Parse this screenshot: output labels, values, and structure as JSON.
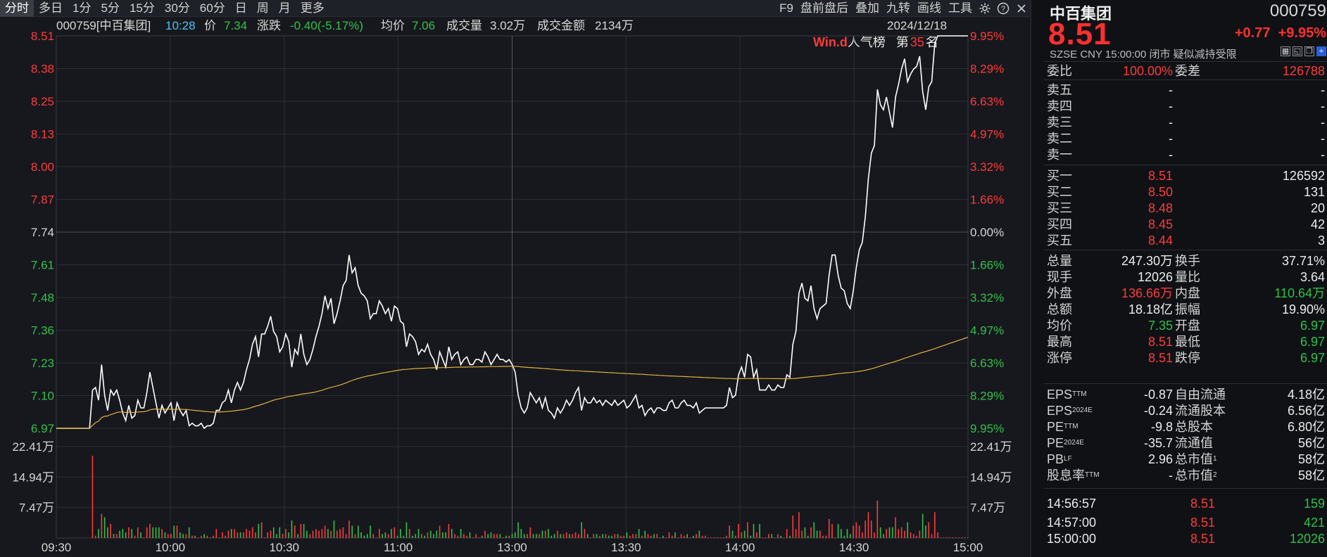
{
  "toolbar": {
    "periods": [
      "分时",
      "多日",
      "1分",
      "5分",
      "15分",
      "30分",
      "60分",
      "日",
      "周",
      "月",
      "更多"
    ],
    "active_period": "分时",
    "right_items": [
      "F9",
      "盘前盘后",
      "叠加",
      "九转",
      "画线",
      "工具"
    ]
  },
  "info_line": {
    "code_name": "000759[中百集团]",
    "time": "10:28",
    "price_label": "价",
    "price": "7.34",
    "change_label": "涨跌",
    "change": "-0.40(-5.17%)",
    "avg_label": "均价",
    "avg": "7.06",
    "vol_label": "成交量",
    "vol": "3.02万",
    "amount_label": "成交金额",
    "amount": "2134万",
    "date": "2024/12/18"
  },
  "popularity": {
    "brand": "Win.d",
    "label": "人气榜",
    "rank_prefix": "第",
    "rank": "35",
    "rank_suffix": "名"
  },
  "chart_data": {
    "type": "line",
    "prev_close": 7.74,
    "price_ticks": [
      "8.51",
      "8.38",
      "8.25",
      "8.13",
      "8.00",
      "7.87",
      "7.74",
      "7.61",
      "7.48",
      "7.36",
      "7.23",
      "7.10",
      "6.97"
    ],
    "pct_ticks": [
      "9.95%",
      "8.29%",
      "6.63%",
      "4.97%",
      "3.32%",
      "1.66%",
      "0.00%",
      "1.66%",
      "3.32%",
      "4.97%",
      "6.63%",
      "8.29%",
      "9.95%"
    ],
    "ylim": [
      6.97,
      8.51
    ],
    "vol_ticks": [
      "22.41万",
      "14.94万",
      "7.47万"
    ],
    "vol_max": 29880,
    "x_ticks": [
      "09:30",
      "10:00",
      "10:30",
      "11:00",
      "13:00",
      "13:30",
      "14:00",
      "14:30",
      "15:00"
    ],
    "series": [
      {
        "values": [
          6.97,
          6.97,
          6.97,
          6.97,
          6.97,
          6.97,
          6.97,
          6.97,
          6.97,
          6.97,
          6.97,
          6.97,
          7.12,
          7.13,
          7.08,
          7.22,
          7.1,
          7.04,
          7.12,
          7.1,
          7.12,
          7.08,
          7.03,
          7.0,
          7.06,
          7.01,
          7.02,
          7.08,
          7.05,
          7.05,
          7.11,
          7.19,
          7.13,
          7.07,
          7.01,
          7.06,
          7.03,
          7.05,
          7.07,
          7.0,
          7.07,
          7.04,
          7.02,
          7.04,
          6.98,
          6.99,
          6.98,
          6.98,
          6.99,
          6.97,
          6.98,
          6.98,
          6.99,
          7.04,
          7.04,
          7.07,
          7.08,
          7.12,
          7.07,
          7.12,
          7.15,
          7.12,
          7.15,
          7.2,
          7.24,
          7.3,
          7.33,
          7.25,
          7.34,
          7.34,
          7.37,
          7.41,
          7.35,
          7.33,
          7.27,
          7.29,
          7.34,
          7.31,
          7.21,
          7.28,
          7.26,
          7.34,
          7.26,
          7.22,
          7.24,
          7.28,
          7.33,
          7.37,
          7.42,
          7.49,
          7.44,
          7.48,
          7.38,
          7.42,
          7.47,
          7.53,
          7.55,
          7.65,
          7.58,
          7.6,
          7.53,
          7.5,
          7.49,
          7.47,
          7.4,
          7.42,
          7.42,
          7.47,
          7.45,
          7.42,
          7.44,
          7.39,
          7.45,
          7.44,
          7.39,
          7.38,
          7.29,
          7.34,
          7.33,
          7.31,
          7.26,
          7.28,
          7.27,
          7.3,
          7.26,
          7.24,
          7.2,
          7.27,
          7.24,
          7.21,
          7.29,
          7.24,
          7.26,
          7.27,
          7.22,
          7.24,
          7.25,
          7.22,
          7.22,
          7.24,
          7.24,
          7.23,
          7.27,
          7.25,
          7.22,
          7.24,
          7.26,
          7.24,
          7.24,
          7.23,
          7.24,
          7.22,
          7.19,
          7.1,
          7.05,
          7.03,
          7.05,
          7.11,
          7.09,
          7.07,
          7.09,
          7.05,
          7.09,
          7.04,
          7.03,
          7.01,
          7.05,
          7.03,
          7.05,
          7.08,
          7.06,
          7.08,
          7.11,
          7.13,
          7.04,
          7.09,
          7.07,
          7.07,
          7.09,
          7.07,
          7.08,
          7.06,
          7.08,
          7.07,
          7.06,
          7.08,
          7.06,
          7.07,
          7.08,
          7.05,
          7.06,
          7.08,
          7.1,
          7.05,
          7.06,
          7.02,
          7.04,
          7.05,
          7.03,
          7.05,
          7.05,
          7.04,
          7.04,
          7.07,
          7.08,
          7.05,
          7.05,
          7.07,
          7.08,
          7.06,
          7.06,
          7.05,
          7.07,
          7.03,
          7.04,
          7.05,
          7.05,
          7.05,
          7.05,
          7.05,
          7.05,
          7.05,
          7.06,
          7.13,
          7.09,
          7.1,
          7.18,
          7.21,
          7.17,
          7.26,
          7.25,
          7.17,
          7.2,
          7.12,
          7.12,
          7.12,
          7.14,
          7.12,
          7.12,
          7.14,
          7.13,
          7.13,
          7.18,
          7.17,
          7.3,
          7.35,
          7.5,
          7.54,
          7.48,
          7.47,
          7.53,
          7.44,
          7.4,
          7.44,
          7.45,
          7.46,
          7.57,
          7.65,
          7.65,
          7.57,
          7.52,
          7.51,
          7.46,
          7.44,
          7.51,
          7.6,
          7.67,
          7.7,
          7.8,
          7.95,
          8.05,
          8.08,
          8.3,
          8.24,
          8.22,
          8.27,
          8.21,
          8.15,
          8.27,
          8.32,
          8.38,
          8.42,
          8.33,
          8.36,
          8.38,
          8.39,
          8.43,
          8.29,
          8.22,
          8.31,
          8.33,
          8.48,
          8.51,
          8.51,
          8.51,
          8.51,
          8.51,
          8.51,
          8.51,
          8.51,
          8.51,
          8.51,
          8.51
        ]
      }
    ],
    "volume_note": "volume bars under price"
  },
  "quote": {
    "name": "中百集团",
    "code": "000759",
    "price": "8.51",
    "change": "+0.77",
    "change_pct": "+9.95%",
    "meta": "SZSE  CNY  15:00:00  闭市   疑似减持受限",
    "weibi_label": "委比",
    "weibi": "100.00%",
    "weicha_label": "委差",
    "weicha": "126788",
    "asks": [
      {
        "label": "卖五",
        "price": "-",
        "vol": "-"
      },
      {
        "label": "卖四",
        "price": "-",
        "vol": "-"
      },
      {
        "label": "卖三",
        "price": "-",
        "vol": "-"
      },
      {
        "label": "卖二",
        "price": "-",
        "vol": "-"
      },
      {
        "label": "卖一",
        "price": "-",
        "vol": "-"
      }
    ],
    "bids": [
      {
        "label": "买一",
        "price": "8.51",
        "vol": "126592"
      },
      {
        "label": "买二",
        "price": "8.50",
        "vol": "131"
      },
      {
        "label": "买三",
        "price": "8.48",
        "vol": "20"
      },
      {
        "label": "买四",
        "price": "8.45",
        "vol": "42"
      },
      {
        "label": "买五",
        "price": "8.44",
        "vol": "3"
      }
    ],
    "stats": [
      {
        "l1": "总量",
        "v1": "247.30万",
        "c1": "white",
        "l2": "换手",
        "v2": "37.71%",
        "c2": "white"
      },
      {
        "l1": "现手",
        "v1": "12026",
        "c1": "white",
        "l2": "量比",
        "v2": "3.64",
        "c2": "white"
      },
      {
        "l1": "外盘",
        "v1": "136.66万",
        "c1": "red",
        "l2": "内盘",
        "v2": "110.64万",
        "c2": "green"
      },
      {
        "l1": "总额",
        "v1": "18.18亿",
        "c1": "white",
        "l2": "振幅",
        "v2": "19.90%",
        "c2": "white"
      },
      {
        "l1": "均价",
        "v1": "7.35",
        "c1": "green",
        "l2": "开盘",
        "v2": "6.97",
        "c2": "green"
      },
      {
        "l1": "最高",
        "v1": "8.51",
        "c1": "red",
        "l2": "最低",
        "v2": "6.97",
        "c2": "green"
      },
      {
        "l1": "涨停",
        "v1": "8.51",
        "c1": "red",
        "l2": "跌停",
        "v2": "6.97",
        "c2": "green"
      }
    ],
    "fundamentals": [
      {
        "l1": "EPS",
        "s1": "TTM",
        "v1": "-0.87",
        "l2": "自由流通",
        "s2": "",
        "v2": "4.18亿"
      },
      {
        "l1": "EPS",
        "s1": "2024E",
        "v1": "-0.24",
        "l2": "流通股本",
        "s2": "",
        "v2": "6.56亿"
      },
      {
        "l1": "PE",
        "s1": "TTM",
        "v1": "-9.8",
        "l2": "总股本",
        "s2": "",
        "v2": "6.80亿"
      },
      {
        "l1": "PE",
        "s1": "2024E",
        "v1": "-35.7",
        "l2": "流通值",
        "s2": "",
        "v2": "56亿"
      },
      {
        "l1": "PB",
        "s1": "LF",
        "v1": "2.96",
        "l2": "总市值",
        "s2": "1",
        "v2": "58亿"
      },
      {
        "l1": "股息率",
        "s1": "TTM",
        "v1": "-",
        "l2": "总市值",
        "s2": "2",
        "v2": "58亿"
      }
    ],
    "trades": [
      {
        "time": "14:56:57",
        "price": "8.51",
        "vol": "159"
      },
      {
        "time": "14:57:00",
        "price": "8.51",
        "vol": "421"
      },
      {
        "time": "15:00:00",
        "price": "8.51",
        "vol": "12026"
      }
    ]
  },
  "colors": {
    "up": "#ff3b3b",
    "down": "#35c04a",
    "price_line": "#ffffff",
    "avg_line": "#e2b23a",
    "background": "#16181d"
  }
}
